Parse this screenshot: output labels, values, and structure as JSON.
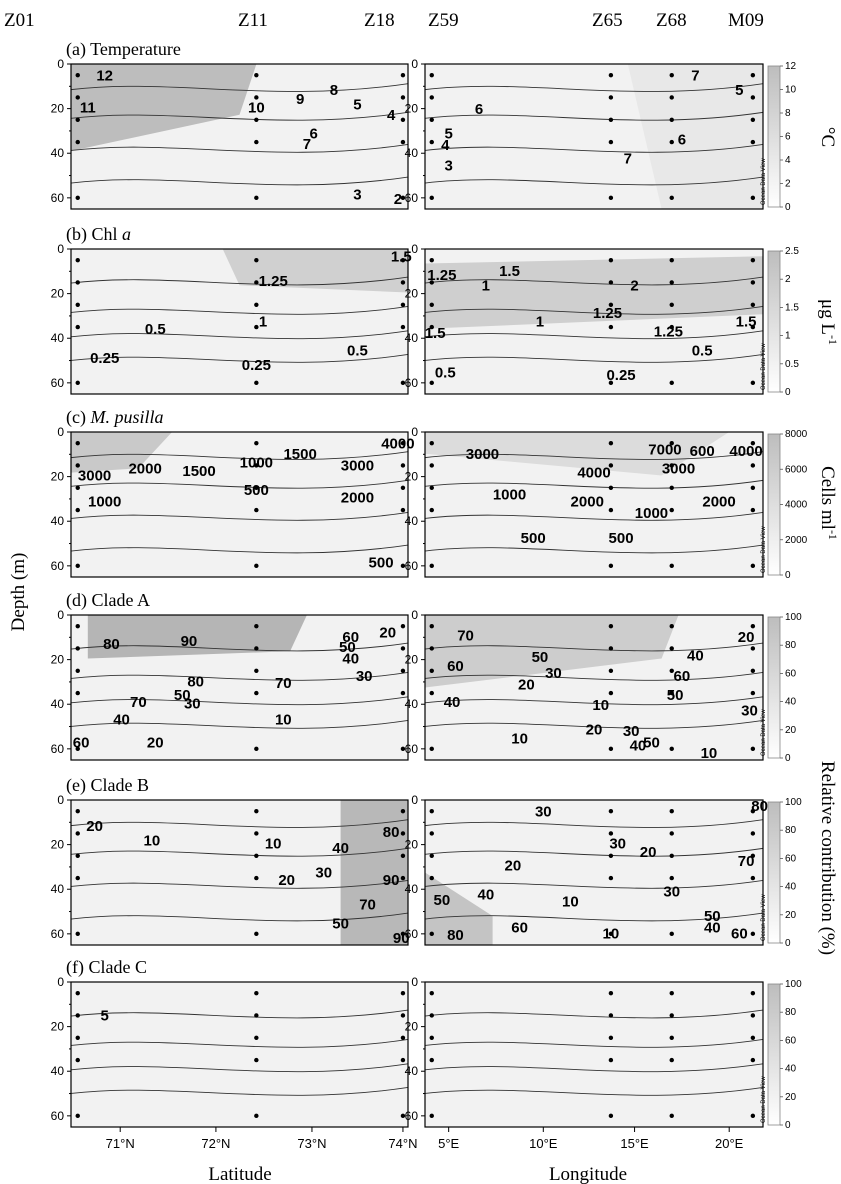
{
  "stations": [
    "Z01",
    "Z11",
    "Z18",
    "Z59",
    "Z65",
    "Z68",
    "M09"
  ],
  "y_axis_label": "Depth (m)",
  "chart_data": {
    "type": "heatmap",
    "y_axis": {
      "label": "Depth (m)",
      "ylim": [
        0,
        65
      ],
      "ticks": [
        "0",
        "20",
        "40",
        "60"
      ]
    },
    "x_axes": [
      {
        "label": "Latitude",
        "ticks": [
          "71°N",
          "72°N",
          "73°N",
          "74°N"
        ]
      },
      {
        "label": "Longitude",
        "ticks": [
          "5°E",
          "10°E",
          "15°E",
          "20°E"
        ]
      }
    ],
    "panels": [
      {
        "title": "(a) Temperature",
        "unit": "°C",
        "colorbar": [
          "0",
          "2",
          "4",
          "6",
          "8",
          "10",
          "12"
        ],
        "left_contour_labels": [
          "12",
          "11",
          "10",
          "9",
          "8",
          "7",
          "6",
          "5",
          "4",
          "3",
          "2"
        ],
        "right_contour_labels": [
          "7",
          "6",
          "5",
          "4",
          "3",
          "6",
          "7",
          "5"
        ]
      },
      {
        "title": "(b) Chl a",
        "unit": "μg L-1",
        "colorbar": [
          "0",
          "0.5",
          "1",
          "1.5",
          "2",
          "2.5"
        ],
        "left_contour_labels": [
          "1.25",
          "1",
          "0.5",
          "0.25",
          "0.25",
          "0.5",
          "1.5"
        ],
        "right_contour_labels": [
          "1.25",
          "1",
          "1.5",
          "2",
          "1.25",
          "1",
          "1.5",
          "1.25",
          "1.5",
          "0.5",
          "0.25",
          "0.5"
        ]
      },
      {
        "title": "(c) M. pusilla",
        "unit": "Cells ml-1",
        "colorbar": [
          "0",
          "2000",
          "4000",
          "6000",
          "8000"
        ],
        "left_contour_labels": [
          "3000",
          "2000",
          "1500",
          "1500",
          "1000",
          "1000",
          "500",
          "3000",
          "4000",
          "2000",
          "500"
        ],
        "right_contour_labels": [
          "3000",
          "4000",
          "7000",
          "600",
          "4000",
          "3000",
          "1000",
          "2000",
          "1000",
          "2000",
          "500",
          "500"
        ]
      },
      {
        "title": "(d) Clade A",
        "unit": "",
        "colorbar": [
          "0",
          "20",
          "40",
          "60",
          "80",
          "100"
        ],
        "left_contour_labels": [
          "80",
          "90",
          "80",
          "70",
          "50",
          "30",
          "70",
          "40",
          "60",
          "20",
          "10",
          "60",
          "50",
          "40",
          "30",
          "20"
        ],
        "right_contour_labels": [
          "70",
          "50",
          "60",
          "30",
          "20",
          "40",
          "10",
          "20",
          "10",
          "30",
          "40",
          "50",
          "60",
          "40",
          "50",
          "20",
          "30",
          "10"
        ]
      },
      {
        "title": "(e) Clade B",
        "unit": "",
        "colorbar": [
          "0",
          "20",
          "40",
          "60",
          "80",
          "100"
        ],
        "left_contour_labels": [
          "20",
          "10",
          "10",
          "20",
          "30",
          "40",
          "50",
          "70",
          "80",
          "90",
          "90"
        ],
        "right_contour_labels": [
          "30",
          "30",
          "20",
          "20",
          "10",
          "10",
          "30",
          "50",
          "40",
          "60",
          "80",
          "70",
          "50",
          "40",
          "60",
          "80"
        ]
      },
      {
        "title": "(f) Clade C",
        "unit": "",
        "colorbar": [
          "0",
          "20",
          "40",
          "60",
          "80",
          "100"
        ],
        "left_contour_labels": [
          "5"
        ],
        "right_contour_labels": []
      }
    ],
    "shared_unit": "Relative contribution (%)",
    "colorbar_note": "Ocean Data View"
  }
}
